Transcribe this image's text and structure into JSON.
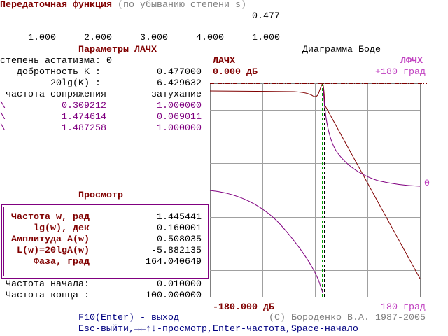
{
  "header": {
    "title": "Передаточная функция",
    "subtitle": "(по убыванию степени s)",
    "numerator": "0.477",
    "denominator": [
      "1.000",
      "2.000",
      "3.000",
      "4.000",
      "1.000"
    ]
  },
  "params": {
    "title": "Параметры ЛАЧХ",
    "astatism": "степень астатизма: 0",
    "gain_label": "добротность K :",
    "gain": "0.477000",
    "gain_db_label": "20lg(K) :",
    "gain_db": "-6.429632",
    "freq_header": "частота сопряжения",
    "damp_header": "затухание",
    "rows": [
      {
        "marker": "\\",
        "freq": "0.309212",
        "damp": "1.000000"
      },
      {
        "marker": "\\",
        "freq": "1.474614",
        "damp": "0.069011"
      },
      {
        "marker": "\\",
        "freq": "1.487258",
        "damp": "1.000000"
      }
    ]
  },
  "view": {
    "title": "Просмотр",
    "rows": [
      {
        "label": "Частота w, рад",
        "value": "1.445441"
      },
      {
        "label": "lg(w), дек",
        "value": "0.160001"
      },
      {
        "label": "Амплитуда A(w)",
        "value": "0.508035"
      },
      {
        "label": "L(w)=20lgA(w)",
        "value": "-5.882135"
      },
      {
        "label": "Фаза, град",
        "value": "164.040649"
      }
    ]
  },
  "range": {
    "start_label": "Частота начала:",
    "start": "0.010000",
    "end_label": "Частота конца :",
    "end": "100.000000"
  },
  "bode": {
    "title": "Диаграмма Боде",
    "amp_label": "ЛАЧХ",
    "phase_label": "ЛФЧХ",
    "amp_top": "0.000 дБ",
    "phase_top": "+180 град",
    "amp_bottom": "-180.000 дБ",
    "phase_bottom": "-180 град",
    "phase_zero": "0"
  },
  "footer": {
    "exit": "F10(Enter) - выход",
    "copyright": "(C) Бороденко В.А. 1987-2005",
    "keys": "Esc-выйти,→←↑↓-просмотр,Enter-частота,Space-начало"
  }
}
